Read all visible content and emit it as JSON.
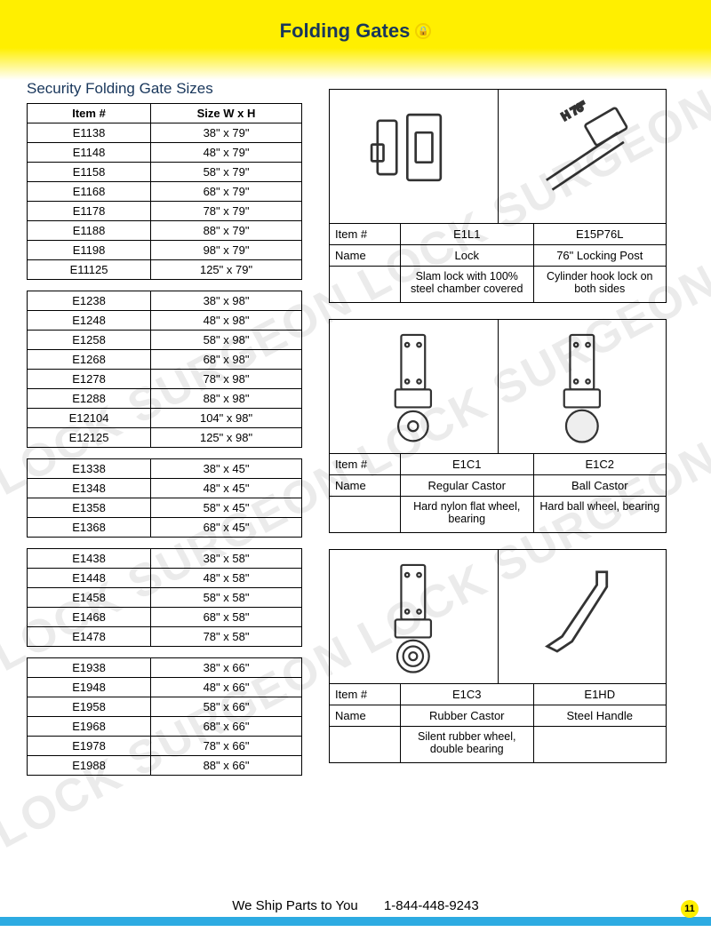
{
  "header": {
    "title": "Folding Gates"
  },
  "section_title": "Security Folding Gate Sizes",
  "size_table_headers": [
    "Item #",
    "Size W x H"
  ],
  "size_groups": [
    [
      {
        "item": "E1138",
        "size": "38\" x 79\""
      },
      {
        "item": "E1148",
        "size": "48\" x 79\""
      },
      {
        "item": "E1158",
        "size": "58\" x 79\""
      },
      {
        "item": "E1168",
        "size": "68\" x 79\""
      },
      {
        "item": "E1178",
        "size": "78\" x 79\""
      },
      {
        "item": "E1188",
        "size": "88\" x 79\""
      },
      {
        "item": "E1198",
        "size": "98\" x 79\""
      },
      {
        "item": "E11125",
        "size": "125\" x 79\""
      }
    ],
    [
      {
        "item": "E1238",
        "size": "38\" x 98\""
      },
      {
        "item": "E1248",
        "size": "48\" x 98\""
      },
      {
        "item": "E1258",
        "size": "58\" x 98\""
      },
      {
        "item": "E1268",
        "size": "68\" x 98\""
      },
      {
        "item": "E1278",
        "size": "78\" x 98\""
      },
      {
        "item": "E1288",
        "size": "88\" x 98\""
      },
      {
        "item": "E12104",
        "size": "104\" x 98\""
      },
      {
        "item": "E12125",
        "size": "125\" x 98\""
      }
    ],
    [
      {
        "item": "E1338",
        "size": "38\" x 45\""
      },
      {
        "item": "E1348",
        "size": "48\" x 45\""
      },
      {
        "item": "E1358",
        "size": "58\" x 45\""
      },
      {
        "item": "E1368",
        "size": "68\" x 45\""
      }
    ],
    [
      {
        "item": "E1438",
        "size": "38\" x 58\""
      },
      {
        "item": "E1448",
        "size": "48\" x 58\""
      },
      {
        "item": "E1458",
        "size": "58\" x 58\""
      },
      {
        "item": "E1468",
        "size": "68\" x 58\""
      },
      {
        "item": "E1478",
        "size": "78\" x 58\""
      }
    ],
    [
      {
        "item": "E1938",
        "size": "38\" x 66\""
      },
      {
        "item": "E1948",
        "size": "48\" x 66\""
      },
      {
        "item": "E1958",
        "size": "58\" x 66\""
      },
      {
        "item": "E1968",
        "size": "68\" x 66\""
      },
      {
        "item": "E1978",
        "size": "78\" x 66\""
      },
      {
        "item": "E1988",
        "size": "88\" x 66\""
      }
    ]
  ],
  "product_labels": {
    "item": "Item #",
    "name": "Name"
  },
  "products": [
    {
      "left": {
        "item": "E1L1",
        "name": "Lock",
        "desc": "Slam lock with 100% steel chamber covered"
      },
      "right": {
        "item": "E15P76L",
        "name": "76\" Locking Post",
        "desc": "Cylinder hook lock on both sides"
      }
    },
    {
      "left": {
        "item": "E1C1",
        "name": "Regular Castor",
        "desc": "Hard nylon flat wheel, bearing"
      },
      "right": {
        "item": "E1C2",
        "name": "Ball Castor",
        "desc": "Hard ball wheel, bearing"
      }
    },
    {
      "left": {
        "item": "E1C3",
        "name": "Rubber Castor",
        "desc": "Silent rubber wheel, double bearing"
      },
      "right": {
        "item": "E1HD",
        "name": "Steel Handle",
        "desc": ""
      }
    }
  ],
  "footer": {
    "text_left": "We Ship Parts to You",
    "text_right": "1-844-448-9243",
    "page": "11"
  },
  "watermark": "LOCK SURGEON  LOCK SURGEON",
  "colors": {
    "header_yellow": "#ffef00",
    "title_navy": "#18365b",
    "footer_blue": "#2dabe2",
    "border": "#000000",
    "bg": "#ffffff",
    "watermark_gray": "rgba(0,0,0,0.08)"
  }
}
